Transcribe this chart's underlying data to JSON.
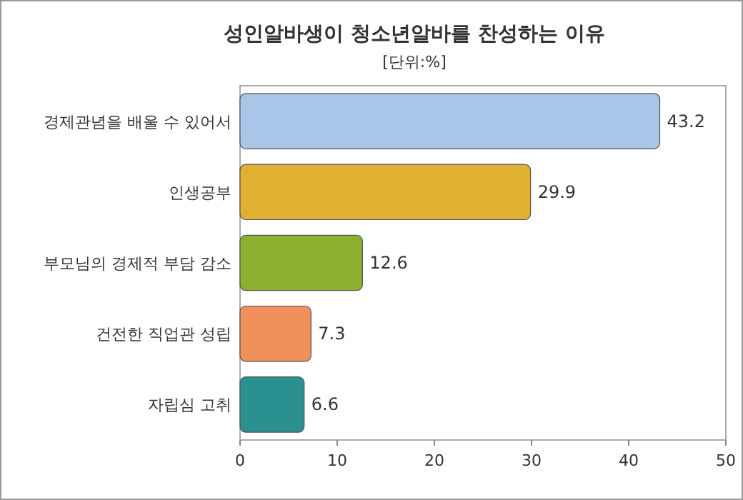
{
  "chart_data": {
    "type": "bar",
    "orientation": "horizontal",
    "title": "성인알바생이 청소년알바를 찬성하는 이유",
    "annotations": [
      "[단위:%]"
    ],
    "categories": [
      "경제관념을 배울 수 있어서",
      "인생공부",
      "부모님의 경제적 부담 감소",
      "건전한 직업관 성립",
      "자립심 고취"
    ],
    "values": [
      43.2,
      29.9,
      12.6,
      7.3,
      6.6
    ],
    "colors": [
      "#a9c6e8",
      "#e0b030",
      "#8db030",
      "#f0905a",
      "#2a9090"
    ],
    "xlim": [
      0,
      50
    ],
    "xticks": [
      0,
      10,
      20,
      30,
      40,
      50
    ],
    "data_labels": true
  }
}
